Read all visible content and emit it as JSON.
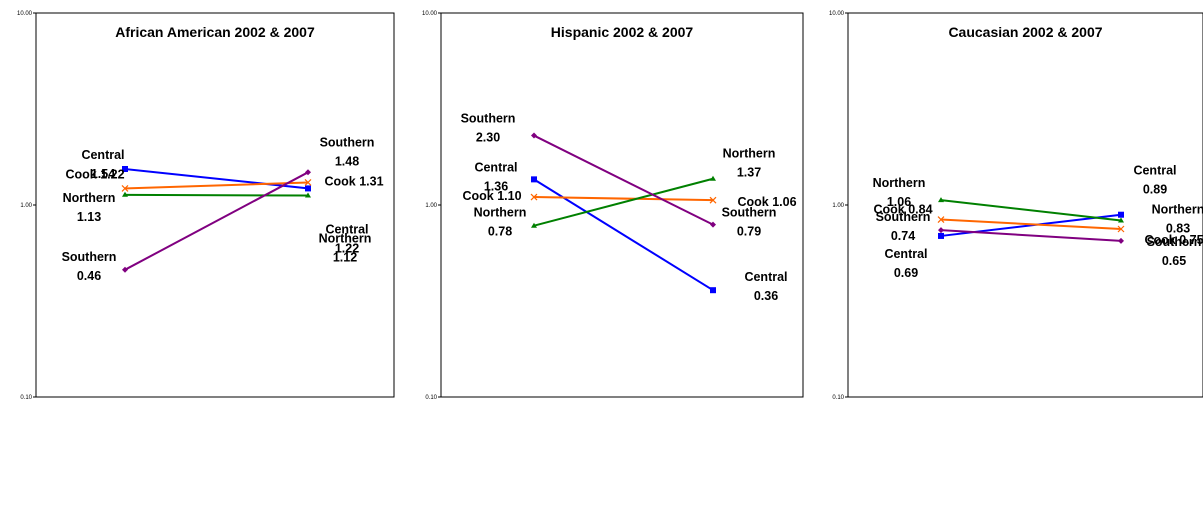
{
  "chart_data": [
    {
      "type": "line",
      "title": "African American 2002 & 2007",
      "yscale": "log",
      "ylim": [
        0.1,
        10
      ],
      "ytick_labels": [
        "10.00",
        "1.00",
        "0.10"
      ],
      "x": [
        "2002",
        "2007"
      ],
      "series": [
        {
          "name": "Central",
          "color": "#0000ff",
          "marker": "square",
          "values": [
            1.54,
            1.22
          ],
          "labels": [
            [
              "Central",
              "1.54"
            ],
            [
              "Central",
              "1.22"
            ]
          ]
        },
        {
          "name": "Cook",
          "color": "#ff6600",
          "marker": "x",
          "values": [
            1.22,
            1.31
          ],
          "labels": [
            [
              "Cook 1.22"
            ],
            [
              "Cook 1.31"
            ]
          ]
        },
        {
          "name": "Northern",
          "color": "#008000",
          "marker": "triangle",
          "values": [
            1.13,
            1.12
          ],
          "labels": [
            [
              "Northern",
              "1.13"
            ],
            [
              "Northern",
              "1.12"
            ]
          ]
        },
        {
          "name": "Southern",
          "color": "#800080",
          "marker": "diamond",
          "values": [
            0.46,
            1.48
          ],
          "labels": [
            [
              "Southern",
              "0.46"
            ],
            [
              "Southern",
              "1.48"
            ]
          ]
        }
      ]
    },
    {
      "type": "line",
      "title": "Hispanic 2002 & 2007",
      "yscale": "log",
      "ylim": [
        0.1,
        10
      ],
      "ytick_labels": [
        "10.00",
        "1.00",
        "0.10"
      ],
      "x": [
        "2002",
        "2007"
      ],
      "series": [
        {
          "name": "Central",
          "color": "#0000ff",
          "marker": "square",
          "values": [
            1.36,
            0.36
          ],
          "labels": [
            [
              "Central",
              "1.36"
            ],
            [
              "Central",
              "0.36"
            ]
          ]
        },
        {
          "name": "Cook",
          "color": "#ff6600",
          "marker": "x",
          "values": [
            1.1,
            1.06
          ],
          "labels": [
            [
              "Cook  1.10"
            ],
            [
              "Cook 1.06"
            ]
          ]
        },
        {
          "name": "Northern",
          "color": "#008000",
          "marker": "triangle",
          "values": [
            0.78,
            1.37
          ],
          "labels": [
            [
              "Northern",
              "0.78"
            ],
            [
              "Northern",
              "1.37"
            ]
          ]
        },
        {
          "name": "Southern",
          "color": "#800080",
          "marker": "diamond",
          "values": [
            2.3,
            0.79
          ],
          "labels": [
            [
              "Southern",
              "2.30"
            ],
            [
              "Southern",
              "0.79"
            ]
          ]
        }
      ]
    },
    {
      "type": "line",
      "title": "Caucasian 2002 & 2007",
      "yscale": "log",
      "ylim": [
        0.1,
        10
      ],
      "ytick_labels": [
        "10.00",
        "1.00",
        "0.10"
      ],
      "x": [
        "2002",
        "2007"
      ],
      "series": [
        {
          "name": "Central",
          "color": "#0000ff",
          "marker": "square",
          "values": [
            0.69,
            0.89
          ],
          "labels": [
            [
              "Central",
              "0.69"
            ],
            [
              "Central",
              "0.89"
            ]
          ]
        },
        {
          "name": "Cook",
          "color": "#ff6600",
          "marker": "x",
          "values": [
            0.84,
            0.75
          ],
          "labels": [
            [
              "Cook 0.84"
            ],
            [
              "Cook 0.75"
            ]
          ]
        },
        {
          "name": "Northern",
          "color": "#008000",
          "marker": "triangle",
          "values": [
            1.06,
            0.83
          ],
          "labels": [
            [
              "Northern",
              "1.06"
            ],
            [
              "Northern",
              "0.83"
            ]
          ]
        },
        {
          "name": "Southern",
          "color": "#800080",
          "marker": "diamond",
          "values": [
            0.74,
            0.65
          ],
          "labels": [
            [
              "Southern",
              "0.74"
            ],
            [
              "Southern",
              "0.65"
            ]
          ]
        }
      ]
    }
  ]
}
